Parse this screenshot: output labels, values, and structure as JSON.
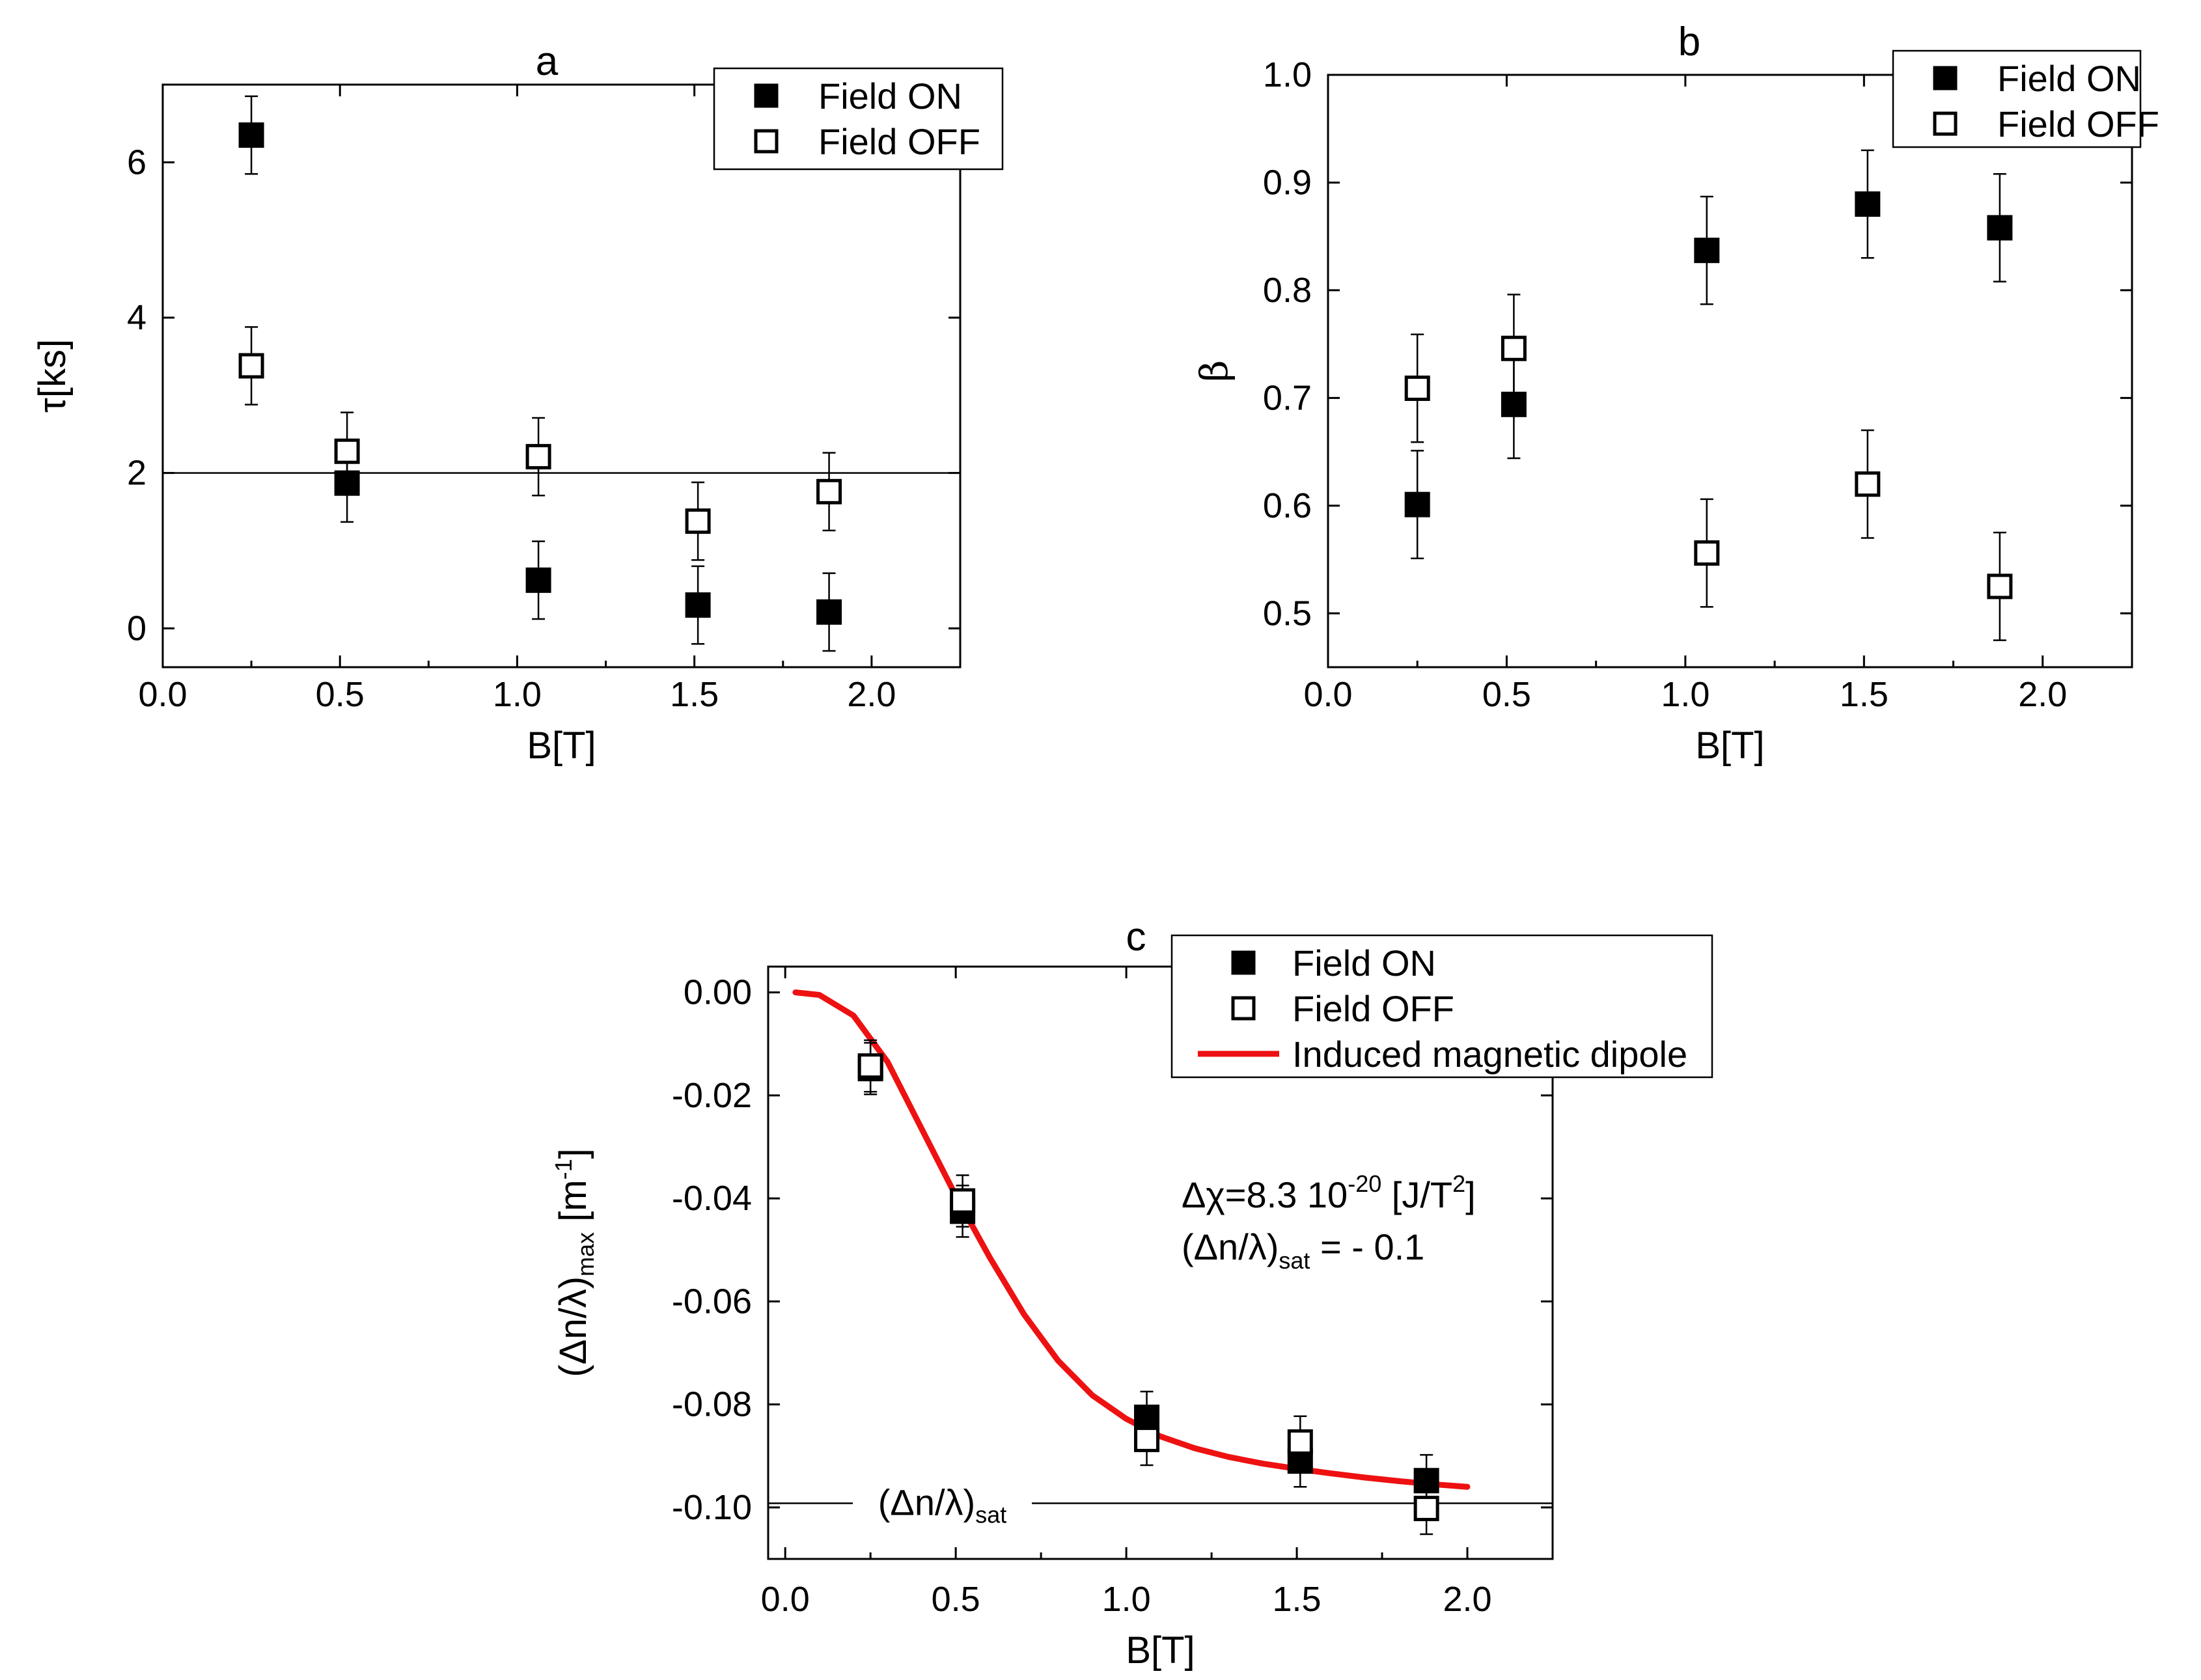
{
  "chart_data": [
    {
      "id": "a",
      "type": "scatter",
      "title": "a",
      "xlabel": "B[T]",
      "ylabel": "τ[ks]",
      "xlim": [
        0.0,
        2.25
      ],
      "ylim": [
        -0.5,
        7.0
      ],
      "xticks": [
        "0.0",
        "0.5",
        "1.0",
        "1.5",
        "2.0"
      ],
      "yticks": [
        "0",
        "2",
        "4",
        "6"
      ],
      "reference_line_y": 2.0,
      "legend": [
        "Field ON",
        "Field OFF"
      ],
      "series": [
        {
          "name": "Field ON",
          "marker": "filled-square",
          "x": [
            0.25,
            0.52,
            1.06,
            1.51,
            1.88
          ],
          "y": [
            6.35,
            1.87,
            0.62,
            0.3,
            0.21
          ],
          "err": [
            0.5,
            0.5,
            0.5,
            0.5,
            0.5
          ]
        },
        {
          "name": "Field OFF",
          "marker": "open-square",
          "x": [
            0.25,
            0.52,
            1.06,
            1.51,
            1.88
          ],
          "y": [
            3.38,
            2.28,
            2.21,
            1.38,
            1.76
          ],
          "err": [
            0.5,
            0.5,
            0.5,
            0.5,
            0.5
          ]
        }
      ]
    },
    {
      "id": "b",
      "type": "scatter",
      "title": "b",
      "xlabel": "B[T]",
      "ylabel": "β",
      "xlim": [
        0.0,
        2.25
      ],
      "ylim": [
        0.45,
        1.0
      ],
      "xticks": [
        "0.0",
        "0.5",
        "1.0",
        "1.5",
        "2.0"
      ],
      "yticks": [
        "0.5",
        "0.6",
        "0.7",
        "0.8",
        "0.9",
        "1.0"
      ],
      "legend": [
        "Field ON",
        "Field OFF"
      ],
      "series": [
        {
          "name": "Field ON",
          "marker": "filled-square",
          "x": [
            0.25,
            0.52,
            1.06,
            1.51,
            1.88
          ],
          "y": [
            0.601,
            0.694,
            0.837,
            0.88,
            0.858
          ],
          "err": [
            0.05,
            0.05,
            0.05,
            0.05,
            0.05
          ]
        },
        {
          "name": "Field OFF",
          "marker": "open-square",
          "x": [
            0.25,
            0.52,
            1.06,
            1.51,
            1.88
          ],
          "y": [
            0.709,
            0.746,
            0.556,
            0.62,
            0.525
          ],
          "err": [
            0.05,
            0.05,
            0.05,
            0.05,
            0.05
          ]
        }
      ]
    },
    {
      "id": "c",
      "type": "scatter",
      "title": "c",
      "xlabel": "B[T]",
      "ylabel": "(Δn/λ)max [m-1]",
      "ylabel_parts": {
        "main": "(Δn/λ)",
        "sub": "max",
        "unit": " [m",
        "sup": "-1",
        "close": "]"
      },
      "xlim": [
        -0.05,
        2.25
      ],
      "ylim": [
        -0.11,
        0.005
      ],
      "xticks": [
        "0.0",
        "0.5",
        "1.0",
        "1.5",
        "2.0"
      ],
      "yticks": [
        "0.00",
        "-0.02",
        "-0.04",
        "-0.06",
        "-0.08",
        "-0.10"
      ],
      "reference_line_y": -0.0992,
      "reference_line_label": {
        "main": "(Δn/λ)",
        "sub": "sat"
      },
      "legend": [
        "Field ON",
        "Field OFF",
        "Induced magnetic dipole"
      ],
      "annotation": {
        "line1_main": "Δχ=8.3 10",
        "line1_sup": "-20",
        "line1_unit": " [J/T",
        "line1_sup2": "2",
        "line1_close": "]",
        "line2_main": "(Δn/λ)",
        "line2_sub": "sat",
        "line2_value": " = - 0.1"
      },
      "fit": {
        "name": "Induced magnetic dipole",
        "color": "#ee1111",
        "model": "(Δn/λ)sat · (1 - 3/x² · (x·coth(x) - 1)) approx, x = Δχ·B²/(2kT)",
        "x_range": [
          0.03,
          2.0
        ],
        "points": [
          [
            0.03,
            0.0
          ],
          [
            0.1,
            -0.0005
          ],
          [
            0.2,
            -0.0045
          ],
          [
            0.3,
            -0.0135
          ],
          [
            0.4,
            -0.0265
          ],
          [
            0.5,
            -0.0395
          ],
          [
            0.6,
            -0.0515
          ],
          [
            0.7,
            -0.0625
          ],
          [
            0.8,
            -0.0715
          ],
          [
            0.9,
            -0.0782
          ],
          [
            1.0,
            -0.0828
          ],
          [
            1.1,
            -0.0862
          ],
          [
            1.2,
            -0.0885
          ],
          [
            1.3,
            -0.0902
          ],
          [
            1.4,
            -0.0915
          ],
          [
            1.5,
            -0.0925
          ],
          [
            1.6,
            -0.0934
          ],
          [
            1.7,
            -0.0942
          ],
          [
            1.8,
            -0.0949
          ],
          [
            1.9,
            -0.0955
          ],
          [
            2.0,
            -0.096
          ]
        ]
      },
      "series": [
        {
          "name": "Field ON",
          "marker": "filled-square",
          "x": [
            0.25,
            0.52,
            1.06,
            1.51,
            1.88
          ],
          "y": [
            -0.0148,
            -0.0425,
            -0.0825,
            -0.091,
            -0.0948
          ],
          "err": [
            0.005,
            0.005,
            0.005,
            0.005,
            0.005
          ]
        },
        {
          "name": "Field OFF",
          "marker": "open-square",
          "x": [
            0.25,
            0.52,
            1.06,
            1.51,
            1.88
          ],
          "y": [
            -0.0143,
            -0.0405,
            -0.0868,
            -0.0873,
            -0.1002
          ],
          "err": [
            0.005,
            0.005,
            0.005,
            0.005,
            0.005
          ]
        }
      ]
    }
  ]
}
